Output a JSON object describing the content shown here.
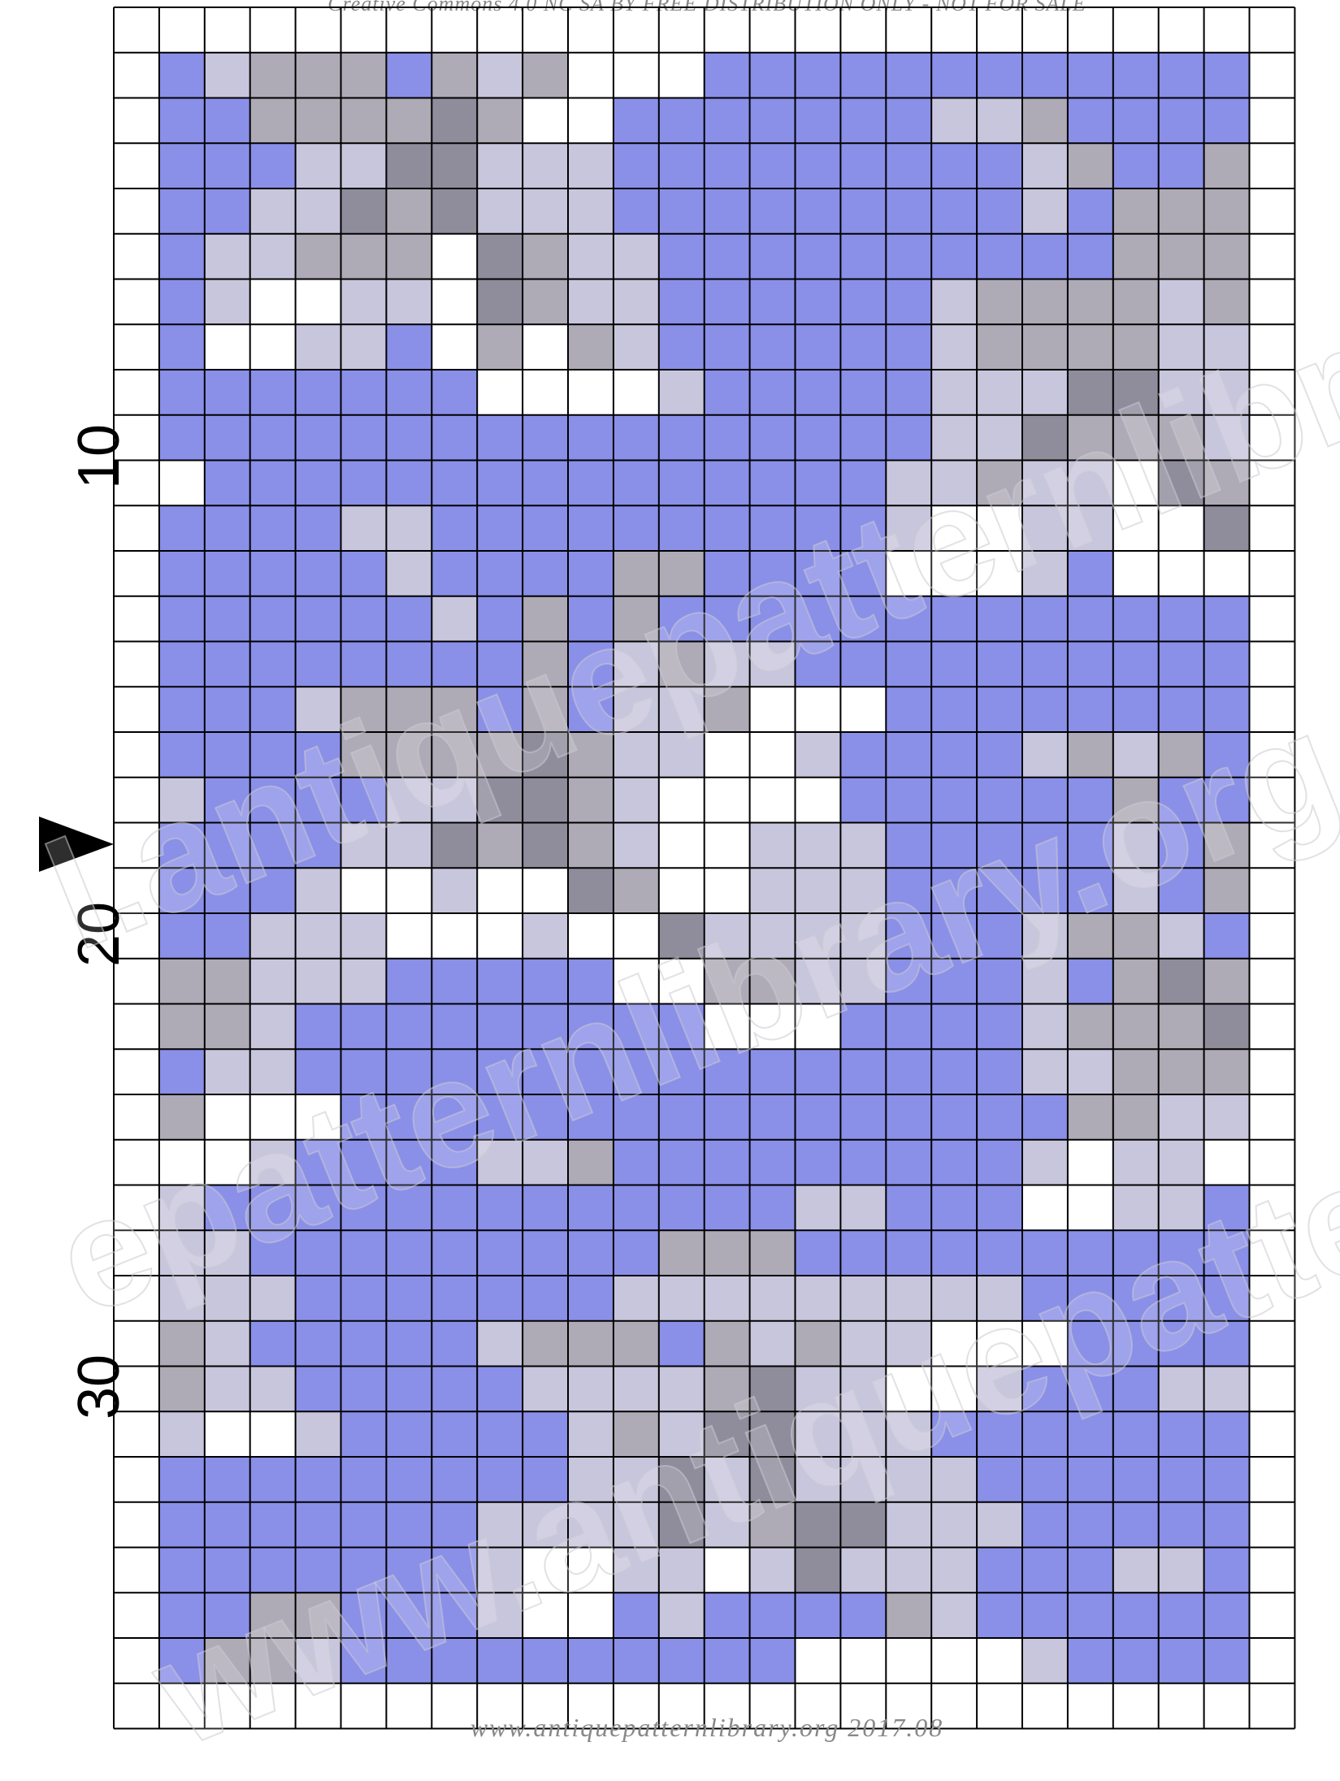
{
  "header": {
    "text": "Creative Commons 4.0 NC SA BY FREE DISTRIBUTION ONLY - NOT FOR SALE"
  },
  "footer": {
    "text": "www.antiquepatternlibrary.org 2017.08"
  },
  "row_labels": {
    "label_10": "10",
    "label_20": "20",
    "label_30": "30"
  },
  "watermark": {
    "line1": "l.antiquepatternlibra",
    "line2": "epatternlibrary.org",
    "line3": "www.antiquepatte"
  },
  "colors": {
    "blue": "#8a8fe8",
    "light": "#c8c6dc",
    "mid": "#aeaab6",
    "dark": "#8f8c9c",
    "empty": "#ffffff",
    "grid": "#000000"
  },
  "grid": {
    "cols": 26,
    "rows": 38,
    "legend": "B = blue, L = light lilac-grey, M = medium grey, D = dark grey, . = white",
    "cells": [
      "..........................",
      ".BLMMMBMLM...BBBBBBBBBBBB.",
      ".BBMMMMDM..BBBBBBBLLMBBBB.",
      ".BBBLLDDLLLBBBBBBBBBLMBBM.",
      ".BBLLDMDLLLBBBBBBBBBLBMMM.",
      ".BLLMMM.DMLLBBBBBBBBBBMMM.",
      ".BL..LL.DMLLBBBBBBLMMMMLM.",
      ".B..LLB.M.MLBBBBBBLMMMMLL.",
      ".BBBBBBB....LBBBBBLLLDDLL.",
      ".BBBBBBBBBBBBBBBBBLLDMMML.",
      "..BBBBBBBBBBBBBBBLLMLL.DM.",
      ".BBBBLLBBBBBBBBBBL..LL..D.",
      ".BBBBBLBBBBMMBBBB...LB....",
      ".BBBBBBLBMBMBBBBBBBBBBBBB.",
      ".BBBBBBBBMBLMLLBBBBBBBBBB.",
      ".BBBLMMMBMBLLM...BBBBBBBB.",
      ".BBBBMMMMDMLL..LBBBBLMLMB.",
      ".LBBBBLLDDML....BBBBBBMBB.",
      ".BBBBLLDMDML..LLLBBBBBLBM.",
      ".BBBL..L..DM..LLLBBBBBLBM.",
      ".BBLLL...L..DLLLLBBBLMMLB.",
      ".MMLLLBBBBB..MMLLBBBLBMDM.",
      ".MMLBBBBBBBBB...BBBBLMMMD.",
      ".BLLBBBBBBBBBBBBBBBBLLMMM.",
      ".M...BBBBBBBBBBBBBBBBMMLL.",
      "...LBBBBLLMBBBBBBBBBL.LL..",
      ".LBBBBBBBBBBBBBLLBBB..LLB.",
      ".LLBBBBBBBBBMMMBBBBBBBBBB.",
      ".LLLBBBBBBBLLLLLLLLLBBBBB.",
      ".MLBBBBBLMMMBMLMLL...BBBB.",
      ".MLLBBBBBLLLLMDLL..LBBBLL.",
      ".L..LBBBBBLMLDDLLLBBBBBBB.",
      ".BBBBBBBBBLLDLDLLLLBBBBBB.",
      ".BBBBBBBLLLLDLMDDLLLBBBBB.",
      ".BBBBBBBL..LL.LDLLLBBBLLB.",
      ".BBMMBBBL..BLBBBBMLBBBBBB.",
      ".BMMLBBBBBBBBBB.....LBBBB.",
      ".........................."
    ]
  }
}
